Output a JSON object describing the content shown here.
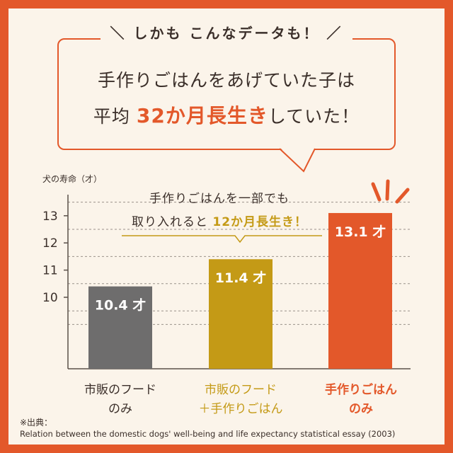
{
  "header": {
    "callout": "＼ しかも こんなデータも！ ／",
    "headline_line1": "手作りごはんをあげていた子は",
    "headline_line2_pre": "平均 ",
    "headline_line2_highlight": "32か月長生き",
    "headline_line2_post": "していた！"
  },
  "annotation": {
    "line1": "手作りごはんを一部でも",
    "line2_pre": "取り入れると ",
    "line2_highlight": "12か月長生き！"
  },
  "footnote": {
    "label": "※出典：",
    "source": "Relation between the domestic dogs' well-being and life expectancy statistical essay (2003)"
  },
  "colors": {
    "frame": "#e3582a",
    "background": "#fbf4ea",
    "bar_commercial": "#6e6d6d",
    "bar_mixed": "#c49a16",
    "bar_homemade": "#e3582a",
    "text": "#3b2f2a"
  },
  "chart_data": {
    "type": "bar",
    "ylabel": "犬の寿命（才）",
    "yticks": [
      "10",
      "11",
      "12",
      "13"
    ],
    "ylim": [
      9,
      13.5
    ],
    "grid": "dashed horizontal",
    "categories": [
      {
        "line1": "市販のフード",
        "line2": "のみ"
      },
      {
        "line1": "市販のフード",
        "line2": "＋手作りごはん"
      },
      {
        "line1": "手作りごはん",
        "line2": "のみ"
      }
    ],
    "values": [
      10.4,
      11.4,
      13.1
    ],
    "value_labels": [
      "10.4 才",
      "11.4 才",
      "13.1 才"
    ]
  }
}
